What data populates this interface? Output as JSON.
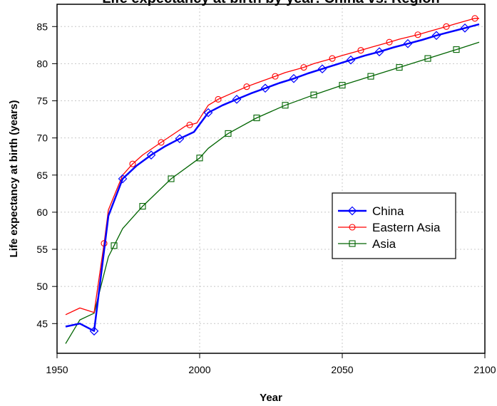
{
  "chart_data": {
    "type": "line",
    "title": "Life expectancy at birth by year: China vs. Region",
    "xlabel": "Year",
    "ylabel": "Life expectancy at birth (years)",
    "xlim": [
      1950,
      2100
    ],
    "ylim": [
      41,
      88
    ],
    "xticks": [
      1950,
      2000,
      2050,
      2100
    ],
    "yticks": [
      45,
      50,
      55,
      60,
      65,
      70,
      75,
      80,
      85
    ],
    "grid": true,
    "legend_position": "center-right",
    "series": [
      {
        "name": "China",
        "color": "#0000ff",
        "marker": "diamond",
        "line_width": 2.5,
        "x": [
          1953,
          1958,
          1963,
          1968,
          1973,
          1978,
          1983,
          1988,
          1993,
          1998,
          2003,
          2008,
          2013,
          2018,
          2023,
          2028,
          2033,
          2038,
          2043,
          2048,
          2053,
          2058,
          2063,
          2068,
          2073,
          2078,
          2083,
          2088,
          2093,
          2098
        ],
        "values": [
          44.6,
          45.0,
          44.0,
          59.5,
          64.5,
          66.3,
          67.7,
          68.9,
          69.9,
          70.8,
          73.4,
          74.4,
          75.2,
          76.0,
          76.7,
          77.4,
          78.0,
          78.7,
          79.3,
          79.9,
          80.5,
          81.1,
          81.6,
          82.2,
          82.7,
          83.2,
          83.8,
          84.3,
          84.8,
          85.3
        ],
        "marker_x": [
          1963,
          1973,
          1983,
          1993,
          2003,
          2013,
          2023,
          2033,
          2043,
          2053,
          2063,
          2073,
          2083,
          2093
        ]
      },
      {
        "name": "Eastern Asia",
        "color": "#ff0000",
        "marker": "circle",
        "line_width": 1.3,
        "x": [
          1953,
          1958,
          1963,
          1966.5,
          1968,
          1973,
          1976.5,
          1980,
          1986.5,
          1990,
          1995,
          1999,
          2003,
          2006.5,
          2010,
          2016.5,
          2020,
          2026.5,
          2030,
          2036.5,
          2040,
          2046.5,
          2050,
          2056.5,
          2060,
          2066.5,
          2070,
          2076.5,
          2080,
          2086.5,
          2090,
          2096.5,
          2098
        ],
        "values": [
          46.2,
          47.1,
          46.5,
          55.8,
          60.3,
          65.0,
          66.5,
          67.7,
          69.4,
          70.3,
          71.6,
          72.0,
          74.4,
          75.2,
          75.8,
          76.9,
          77.4,
          78.3,
          78.8,
          79.5,
          80.0,
          80.7,
          81.1,
          81.8,
          82.2,
          82.9,
          83.3,
          83.9,
          84.3,
          85.0,
          85.4,
          86.1,
          86.1
        ],
        "marker_x": [
          1966.5,
          1976.5,
          1986.5,
          1996.5,
          2006.5,
          2016.5,
          2026.5,
          2036.5,
          2046.5,
          2056.5,
          2066.5,
          2076.5,
          2086.5,
          2096.5
        ]
      },
      {
        "name": "Asia",
        "color": "#006400",
        "marker": "square",
        "line_width": 1.3,
        "x": [
          1953,
          1958,
          1963,
          1968,
          1970,
          1973,
          1980,
          1990,
          2000,
          2003,
          2010,
          2020,
          2030,
          2040,
          2050,
          2060,
          2070,
          2080,
          2090,
          2098
        ],
        "values": [
          42.3,
          45.5,
          46.4,
          54.0,
          55.5,
          57.8,
          60.8,
          64.5,
          67.3,
          68.6,
          70.6,
          72.7,
          74.4,
          75.8,
          77.1,
          78.3,
          79.5,
          80.7,
          81.9,
          82.9
        ],
        "marker_x": [
          1970,
          1980,
          1990,
          2000,
          2010,
          2020,
          2030,
          2040,
          2050,
          2060,
          2070,
          2080,
          2090
        ]
      }
    ]
  }
}
